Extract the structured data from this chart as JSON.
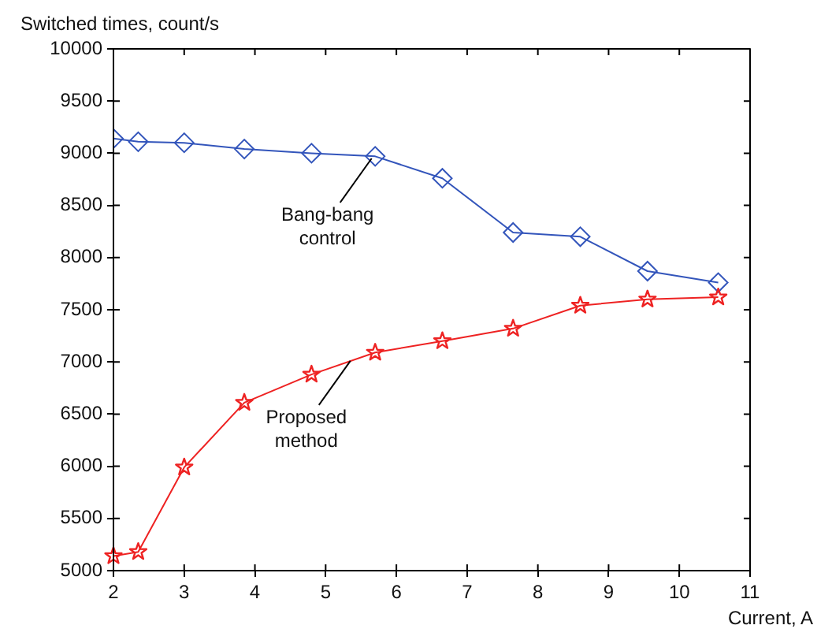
{
  "chart_data": {
    "type": "line",
    "xlabel": "Current, A",
    "ylabel": "Switched times, count/s",
    "xlim": [
      2,
      11
    ],
    "xticks": [
      2,
      3,
      4,
      5,
      6,
      7,
      8,
      9,
      10,
      11
    ],
    "ylim": [
      5000,
      10000
    ],
    "yticks": [
      5000,
      5500,
      6000,
      6500,
      7000,
      7500,
      8000,
      8500,
      9000,
      9500,
      10000
    ],
    "grid": false,
    "legend": false,
    "line_style": "solid",
    "series": [
      {
        "color": "#3355bb",
        "marker": "diamond",
        "x": [
          2,
          2.35,
          3,
          3.85,
          4.8,
          5.7,
          6.65,
          7.65,
          8.6,
          9.55,
          10.55
        ],
        "values": [
          9140,
          9110,
          9100,
          9040,
          9000,
          8970,
          8760,
          8240,
          8200,
          7870,
          7760
        ]
      },
      {
        "color": "#ee2222",
        "marker": "star",
        "x": [
          2,
          2.35,
          3,
          3.85,
          4.8,
          5.7,
          6.65,
          7.65,
          8.6,
          9.55,
          10.55
        ],
        "values": [
          5140,
          5180,
          5990,
          6610,
          6880,
          7090,
          7200,
          7320,
          7540,
          7600,
          7620
        ]
      }
    ],
    "annotations": [
      {
        "text": "Bang-bang control",
        "x": 5.65,
        "y": 8950
      },
      {
        "text": "Proposed method",
        "x": 5.35,
        "y": 7010
      }
    ]
  }
}
